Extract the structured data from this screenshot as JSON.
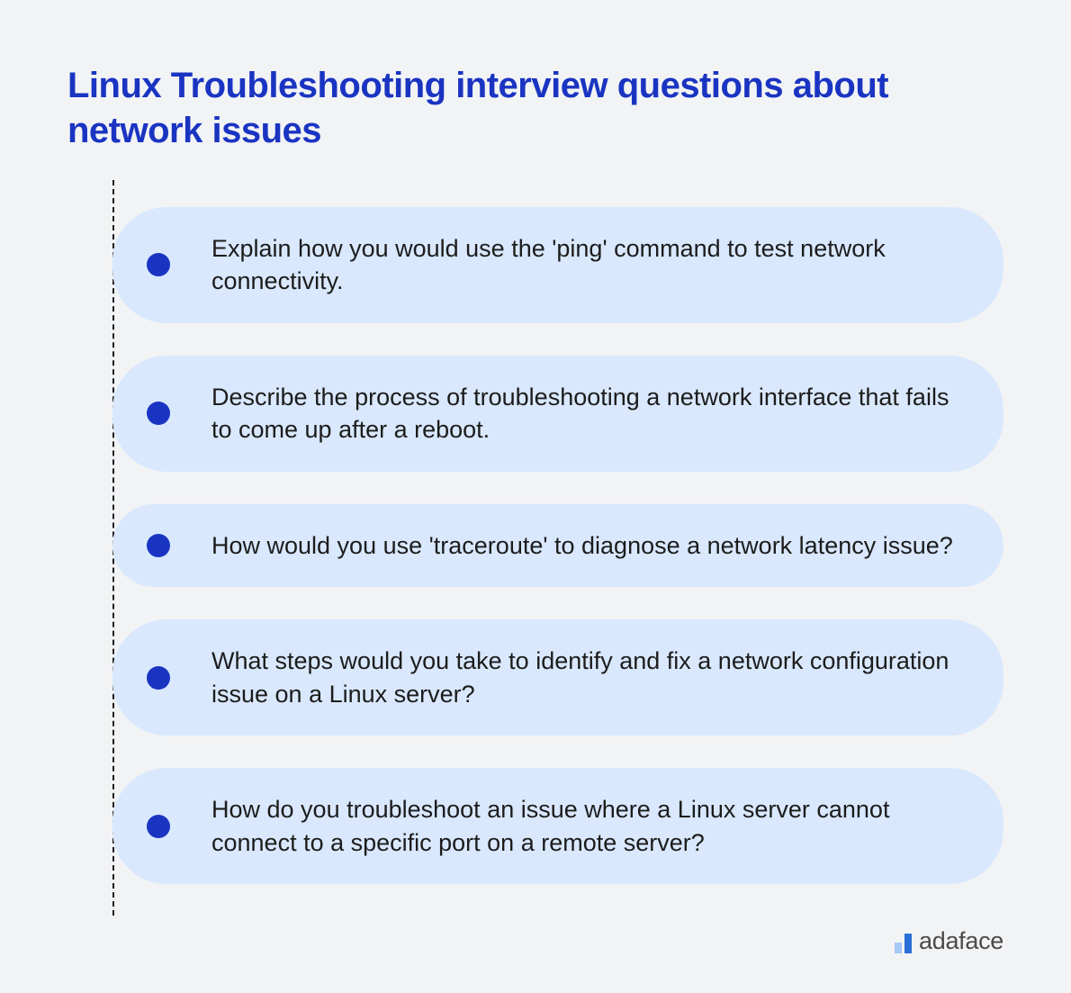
{
  "heading": "Linux Troubleshooting interview questions about network issues",
  "heading_color": "#1a34c2",
  "item_bg_color": "#d9e8fd",
  "bullet_color": "#1a34c2",
  "text_color": "#1c1c1c",
  "page_bg_color": "#f2f3f5",
  "line_color": "#1c1c1c",
  "items": [
    {
      "text": "Explain how you would use the 'ping' command to test network connectivity."
    },
    {
      "text": "Describe the process of troubleshooting a network interface that fails to come up after a reboot."
    },
    {
      "text": "How would you use 'traceroute' to diagnose a network latency issue?"
    },
    {
      "text": "What steps would you take to identify and fix a network configuration issue on a Linux server?"
    },
    {
      "text": "How do you troubleshoot an issue where a Linux server cannot connect to a specific port on a remote server?"
    }
  ],
  "footer": {
    "brand": "adaface",
    "bar1_color": "#a6c9f5",
    "bar2_color": "#2b6fd6",
    "text_color": "#4a4a4a"
  }
}
